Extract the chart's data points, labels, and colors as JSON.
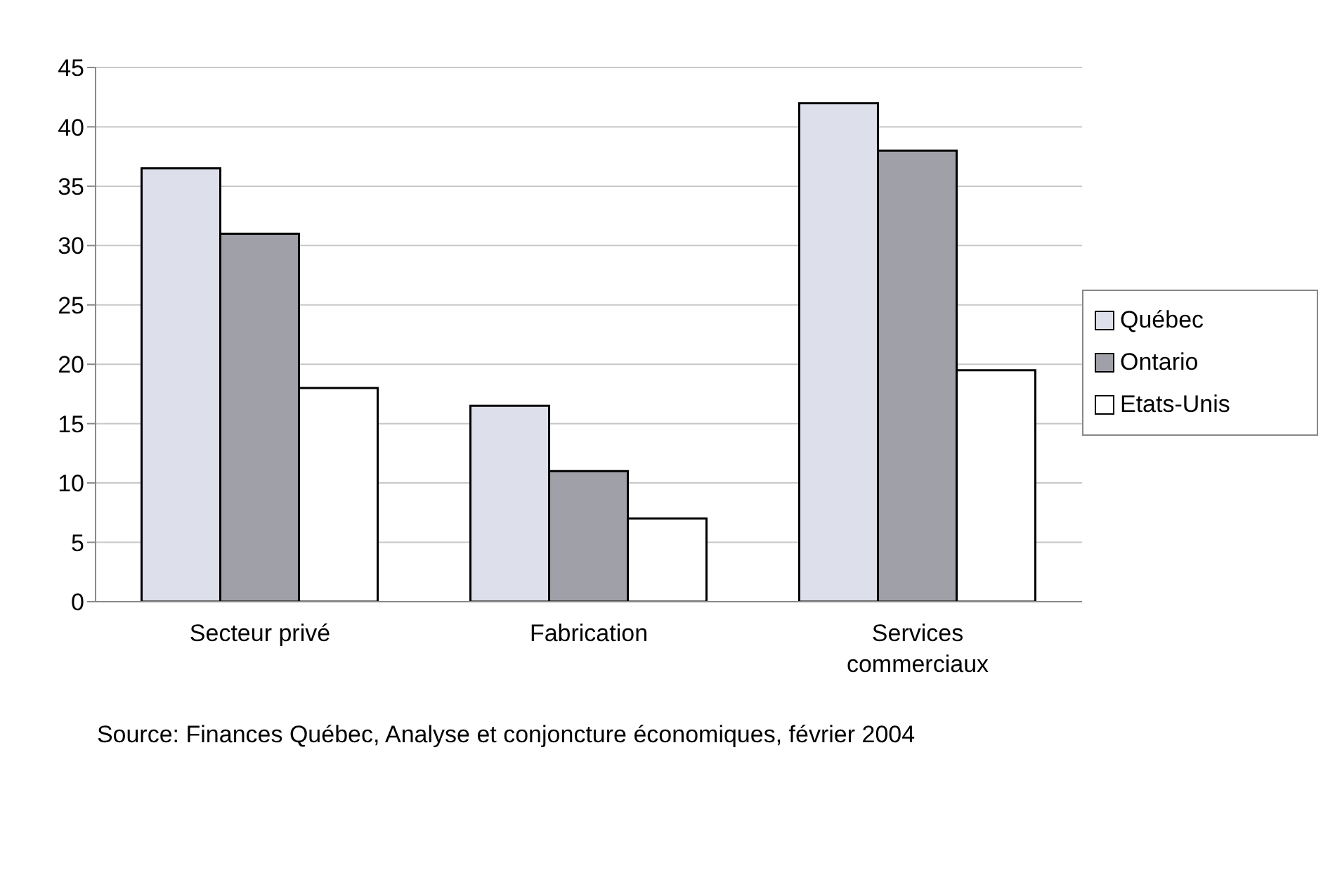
{
  "chart_data": {
    "type": "bar",
    "categories": [
      "Secteur privé",
      "Fabrication",
      "Services commerciaux"
    ],
    "series": [
      {
        "name": "Québec",
        "color": "#dde0ea",
        "values": [
          36.5,
          16.5,
          42
        ]
      },
      {
        "name": "Ontario",
        "color": "#a0a0a8",
        "values": [
          31,
          11,
          38
        ]
      },
      {
        "name": "Etats-Unis",
        "color": "#ffffff",
        "values": [
          18,
          7,
          19.5
        ]
      }
    ],
    "ylim": [
      0,
      45
    ],
    "yticks": [
      0,
      5,
      10,
      15,
      20,
      25,
      30,
      35,
      40,
      45
    ],
    "grid": "y",
    "legend": "right",
    "annotations": [
      "Source: Finances Québec, Analyse et conjoncture économiques, février 2004"
    ]
  }
}
